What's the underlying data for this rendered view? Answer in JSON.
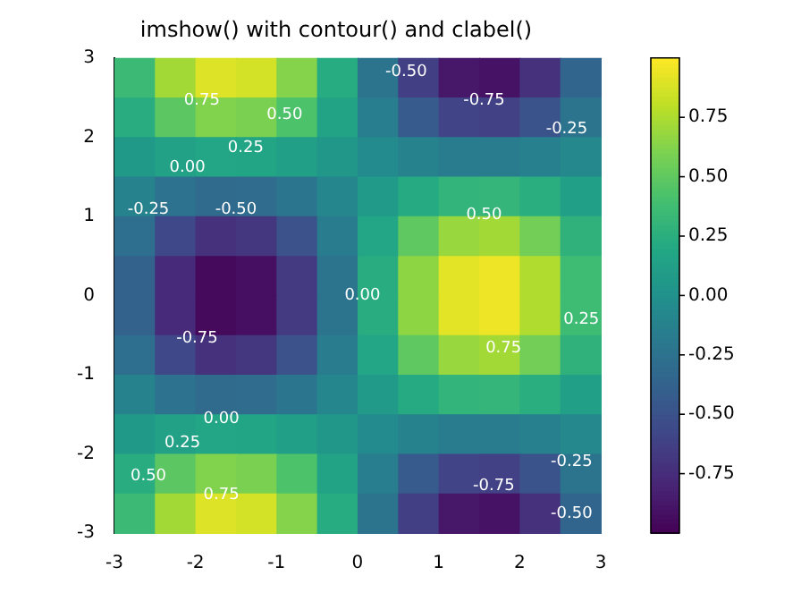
{
  "chart_data": {
    "type": "heatmap",
    "title": "imshow() with contour() and clabel()",
    "xlim": [
      -3,
      3
    ],
    "ylim": [
      -3,
      3
    ],
    "xticks": [
      -3,
      -2,
      -1,
      0,
      1,
      2,
      3
    ],
    "yticks": [
      -3,
      -2,
      -1,
      0,
      1,
      2,
      3
    ],
    "clim": [
      -1,
      1
    ],
    "cticks": [
      {
        "value": -0.75,
        "label": "-0.75"
      },
      {
        "value": -0.5,
        "label": "-0.50"
      },
      {
        "value": -0.25,
        "label": "-0.25"
      },
      {
        "value": 0,
        "label": "0.00"
      },
      {
        "value": 0.25,
        "label": "0.25"
      },
      {
        "value": 0.5,
        "label": "0.50"
      },
      {
        "value": 0.75,
        "label": "0.75"
      }
    ],
    "cells": [
      [
        0.35,
        0.72,
        0.9,
        0.87,
        0.63,
        0.23,
        -0.23,
        -0.63,
        -0.87,
        -0.9,
        -0.72,
        -0.35
      ],
      [
        0.24,
        0.49,
        0.62,
        0.6,
        0.43,
        0.16,
        -0.16,
        -0.43,
        -0.6,
        -0.62,
        -0.49,
        -0.24
      ],
      [
        0.07,
        0.14,
        0.18,
        0.17,
        0.12,
        0.05,
        -0.05,
        -0.12,
        -0.17,
        -0.18,
        -0.14,
        -0.07
      ],
      [
        -0.12,
        -0.25,
        -0.31,
        -0.3,
        -0.22,
        -0.08,
        0.08,
        0.22,
        0.3,
        0.31,
        0.25,
        0.12
      ],
      [
        -0.28,
        -0.57,
        -0.72,
        -0.69,
        -0.5,
        -0.18,
        0.18,
        0.5,
        0.69,
        0.72,
        0.57,
        0.28
      ],
      [
        -0.37,
        -0.76,
        -0.95,
        -0.92,
        -0.66,
        -0.24,
        0.24,
        0.66,
        0.92,
        0.95,
        0.76,
        0.37
      ],
      [
        -0.37,
        -0.76,
        -0.95,
        -0.92,
        -0.66,
        -0.24,
        0.24,
        0.66,
        0.92,
        0.95,
        0.76,
        0.37
      ],
      [
        -0.28,
        -0.57,
        -0.72,
        -0.69,
        -0.5,
        -0.18,
        0.18,
        0.5,
        0.69,
        0.72,
        0.57,
        0.28
      ],
      [
        -0.12,
        -0.25,
        -0.31,
        -0.3,
        -0.22,
        -0.08,
        0.08,
        0.22,
        0.3,
        0.31,
        0.25,
        0.12
      ],
      [
        0.07,
        0.14,
        0.18,
        0.17,
        0.12,
        0.05,
        -0.05,
        -0.12,
        -0.17,
        -0.18,
        -0.14,
        -0.07
      ],
      [
        0.24,
        0.49,
        0.62,
        0.6,
        0.43,
        0.16,
        -0.16,
        -0.43,
        -0.6,
        -0.62,
        -0.49,
        -0.24
      ],
      [
        0.35,
        0.72,
        0.9,
        0.87,
        0.63,
        0.23,
        -0.23,
        -0.63,
        -0.87,
        -0.9,
        -0.72,
        -0.35
      ]
    ],
    "annotations": [
      "0.75",
      "0.50",
      "0.25",
      "0.00",
      "-0.50",
      "-0.75",
      "-0.25",
      "-0.25",
      "-0.50",
      "0.50",
      "0.00",
      "0.25",
      "-0.75",
      "0.75",
      "0.00",
      "0.25",
      "0.50",
      "0.75",
      "-0.75",
      "-0.25",
      "-0.50"
    ]
  }
}
